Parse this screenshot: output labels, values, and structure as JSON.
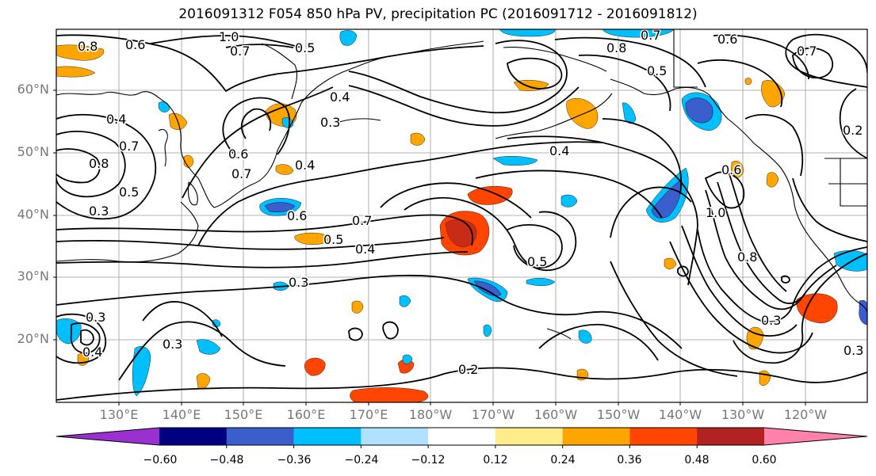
{
  "title": "2016091312 F054 850 hPa PV, precipitation PC (2016091712 - 2016091812)",
  "lat_labels": [
    "60°N",
    "50°N",
    "40°N",
    "30°N",
    "20°N"
  ],
  "lon_labels": [
    "130°E",
    "140°E",
    "150°E",
    "160°E",
    "170°E",
    "180°W",
    "170°W",
    "160°W",
    "150°W",
    "140°W",
    "130°W",
    "120°W"
  ],
  "contour_labels": [
    "0.8",
    "0.6",
    "1.0",
    "0.7",
    "0.5",
    "0.7",
    "0.8",
    "0.6",
    "0.4",
    "0.3",
    "0.7",
    "0.8",
    "0.5",
    "0.3",
    "0.4",
    "0.6",
    "0.7",
    "0.4",
    "0.5",
    "0.4",
    "0.6",
    "0.7",
    "0.4",
    "0.5",
    "0.5",
    "0.3",
    "0.3",
    "0.3",
    "0.2",
    "0.3",
    "0.4",
    "1.0",
    "0.8",
    "0.7",
    "0.6",
    "0.2",
    "0.3"
  ],
  "colorbar": {
    "colors": [
      "#9b30d0",
      "#000080",
      "#3a5fcd",
      "#00bfff",
      "#b0e2ff",
      "#ffffff",
      "#ffec8b",
      "#ffa500",
      "#ff4500",
      "#b22222",
      "#ff82ab"
    ],
    "labels": [
      "−0.60",
      "−0.48",
      "−0.36",
      "−0.24",
      "−0.12",
      "0.12",
      "0.24",
      "0.36",
      "0.48",
      "0.60"
    ]
  }
}
